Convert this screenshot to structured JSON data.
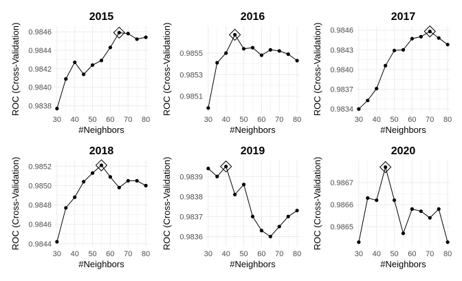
{
  "figure": {
    "colors": {
      "line": "#000000",
      "point": "#000000",
      "grid": "#ebebeb",
      "tick": "#4d4d4d",
      "panel_bg": "#ffffff"
    }
  },
  "chart_data": [
    {
      "type": "line",
      "title": "2015",
      "xlabel": "#Neighbors",
      "ylabel": "ROC (Cross-Validation)",
      "x": [
        30,
        35,
        40,
        45,
        50,
        55,
        60,
        65,
        70,
        75,
        80
      ],
      "values": [
        0.98377,
        0.98409,
        0.98427,
        0.98414,
        0.98424,
        0.98429,
        0.98443,
        0.98459,
        0.98458,
        0.98452,
        0.98454
      ],
      "best_x": 65,
      "xticks": [
        30,
        40,
        50,
        60,
        70,
        80
      ],
      "yticks": [
        0.9838,
        0.984,
        0.9842,
        0.9844,
        0.9846
      ],
      "ytick_labels": [
        "0.9838",
        "0.9840",
        "0.9842",
        "0.9844",
        "0.9846"
      ],
      "xlim": [
        28.5,
        81.5
      ],
      "ylim": [
        0.98373,
        0.98466
      ],
      "grid": true,
      "marker": "point",
      "best_marker": "diamond"
    },
    {
      "type": "line",
      "title": "2016",
      "xlabel": "#Neighbors",
      "ylabel": "ROC (Cross-Validation)",
      "x": [
        30,
        35,
        40,
        45,
        50,
        55,
        60,
        65,
        70,
        75,
        80
      ],
      "values": [
        0.98499,
        0.98541,
        0.9855,
        0.98567,
        0.98554,
        0.98555,
        0.98548,
        0.98553,
        0.98552,
        0.98549,
        0.98543
      ],
      "best_x": 45,
      "xticks": [
        30,
        40,
        50,
        60,
        70,
        80
      ],
      "yticks": [
        0.9851,
        0.9853,
        0.9855
      ],
      "ytick_labels": [
        "0.9851",
        "0.9853",
        "0.9855"
      ],
      "xlim": [
        28.5,
        81.5
      ],
      "ylim": [
        0.98495,
        0.98575
      ],
      "grid": true,
      "marker": "point",
      "best_marker": "diamond"
    },
    {
      "type": "line",
      "title": "2017",
      "xlabel": "#Neighbors",
      "ylabel": "ROC (Cross-Validation)",
      "x": [
        30,
        35,
        40,
        45,
        50,
        55,
        60,
        65,
        70,
        75,
        80
      ],
      "values": [
        0.9834,
        0.98353,
        0.98371,
        0.98406,
        0.98429,
        0.9843,
        0.98447,
        0.9845,
        0.98458,
        0.98448,
        0.98438
      ],
      "best_x": 70,
      "xticks": [
        30,
        40,
        50,
        60,
        70,
        80
      ],
      "yticks": [
        0.9834,
        0.9837,
        0.984,
        0.9843,
        0.9846
      ],
      "ytick_labels": [
        "0.9834",
        "0.9837",
        "0.9840",
        "0.9843",
        "0.9846"
      ],
      "xlim": [
        28.5,
        81.5
      ],
      "ylim": [
        0.98335,
        0.98466
      ],
      "grid": true,
      "marker": "point",
      "best_marker": "diamond"
    },
    {
      "type": "line",
      "title": "2018",
      "xlabel": "#Neighbors",
      "ylabel": "ROC (Cross-Validation)",
      "x": [
        30,
        35,
        40,
        45,
        50,
        55,
        60,
        65,
        70,
        75,
        80
      ],
      "values": [
        0.98442,
        0.98477,
        0.98488,
        0.98504,
        0.98513,
        0.98521,
        0.98509,
        0.98498,
        0.98505,
        0.98505,
        0.985
      ],
      "best_x": 55,
      "xticks": [
        30,
        40,
        50,
        60,
        70,
        80
      ],
      "yticks": [
        0.9844,
        0.9846,
        0.9848,
        0.985,
        0.9852
      ],
      "ytick_labels": [
        "0.9844",
        "0.9846",
        "0.9848",
        "0.9850",
        "0.9852"
      ],
      "xlim": [
        28.5,
        81.5
      ],
      "ylim": [
        0.98437,
        0.98526
      ],
      "grid": true,
      "marker": "point",
      "best_marker": "diamond"
    },
    {
      "type": "line",
      "title": "2019",
      "xlabel": "#Neighbors",
      "ylabel": "ROC (Cross-Validation)",
      "x": [
        30,
        35,
        40,
        45,
        50,
        55,
        60,
        65,
        70,
        75,
        80
      ],
      "values": [
        0.98394,
        0.9839,
        0.98395,
        0.98381,
        0.98386,
        0.9837,
        0.98363,
        0.9836,
        0.98365,
        0.9837,
        0.98373
      ],
      "best_x": 40,
      "xticks": [
        30,
        40,
        50,
        60,
        70,
        80
      ],
      "yticks": [
        0.9836,
        0.9837,
        0.9838,
        0.9839
      ],
      "ytick_labels": [
        "0.9836",
        "0.9837",
        "0.9838",
        "0.9839"
      ],
      "xlim": [
        28.5,
        81.5
      ],
      "ylim": [
        0.98355,
        0.98398
      ],
      "grid": true,
      "marker": "point",
      "best_marker": "diamond"
    },
    {
      "type": "line",
      "title": "2020",
      "xlabel": "#Neighbors",
      "ylabel": "ROC (Cross-Validation)",
      "x": [
        30,
        35,
        40,
        45,
        50,
        55,
        60,
        65,
        70,
        75,
        80
      ],
      "values": [
        0.98643,
        0.98663,
        0.98662,
        0.98677,
        0.98662,
        0.98647,
        0.98658,
        0.98657,
        0.98654,
        0.98658,
        0.98643
      ],
      "best_x": 45,
      "xticks": [
        30,
        40,
        50,
        60,
        70,
        80
      ],
      "yticks": [
        0.9865,
        0.9866,
        0.9867
      ],
      "ytick_labels": [
        "0.9865",
        "0.9866",
        "0.9867"
      ],
      "xlim": [
        28.5,
        81.5
      ],
      "ylim": [
        0.98641,
        0.9868
      ],
      "grid": true,
      "marker": "point",
      "best_marker": "diamond"
    }
  ]
}
